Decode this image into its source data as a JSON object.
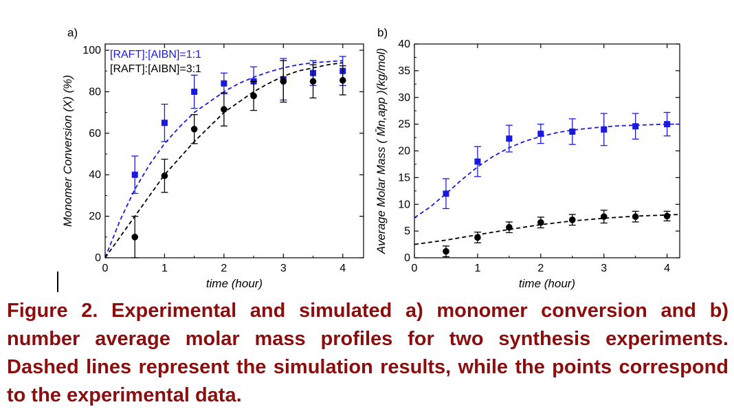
{
  "caption": "Figure 2. Experimental and simulated a) monomer conversion and b) number average molar mass profiles for two synthesis experiments. Dashed lines represent the simulation results, while the points correspond to the experimental data.",
  "colors": {
    "series_blue": "#1a1adf",
    "series_black": "#000000",
    "caption": "#8b0e0e"
  },
  "chart_data": [
    {
      "panel_label": "a)",
      "type": "scatter",
      "xlabel": "time (hour)",
      "ylabel": "Monomer Conversion (X) (%)",
      "xlim": [
        0,
        4.35
      ],
      "ylim": [
        0,
        103
      ],
      "xticks": [
        0,
        1,
        2,
        3,
        4
      ],
      "yticks": [
        0,
        20,
        40,
        60,
        80,
        100
      ],
      "legend": "top-left",
      "series": [
        {
          "name": "[RAFT]:[AIBN]=1:1",
          "color": "#1a1adf",
          "marker": "square",
          "x": [
            0.5,
            1.0,
            1.5,
            2.0,
            2.5,
            3.0,
            3.5,
            4.0
          ],
          "y": [
            40,
            65,
            80,
            84,
            85,
            86,
            89,
            90
          ],
          "err": [
            9,
            9,
            8,
            5,
            7,
            10,
            6,
            7
          ],
          "sim_x": [
            0,
            0.25,
            0.5,
            0.75,
            1.0,
            1.25,
            1.5,
            1.75,
            2.0,
            2.25,
            2.5,
            2.75,
            3.0,
            3.25,
            3.5,
            3.75,
            4.0
          ],
          "sim_y": [
            0,
            18,
            33,
            45,
            55,
            63,
            70,
            75,
            80,
            84,
            87,
            89.5,
            91.5,
            93,
            94,
            94.5,
            95
          ]
        },
        {
          "name": "[RAFT]:[AIBN]=3:1",
          "color": "#000000",
          "marker": "circle",
          "x": [
            0.5,
            1.0,
            1.5,
            2.0,
            2.5,
            3.0,
            3.5,
            4.0
          ],
          "y": [
            10,
            39.5,
            62,
            71.5,
            78,
            85,
            85,
            85.5
          ],
          "err": [
            10,
            8,
            7,
            8,
            7,
            10,
            8,
            7
          ],
          "sim_x": [
            0,
            0.25,
            0.5,
            0.75,
            1.0,
            1.25,
            1.5,
            1.75,
            2.0,
            2.25,
            2.5,
            2.75,
            3.0,
            3.25,
            3.5,
            3.75,
            4.0
          ],
          "sim_y": [
            0,
            10,
            20,
            30,
            40,
            48,
            56,
            63,
            70,
            75,
            80,
            84,
            87.5,
            90,
            91.5,
            93,
            94
          ]
        }
      ]
    },
    {
      "panel_label": "b)",
      "type": "scatter",
      "xlabel": "time (hour)",
      "ylabel": "Average Molar Mass ( M̄n,app )(kg/mol)",
      "xlim": [
        0,
        4.2
      ],
      "ylim": [
        0,
        40
      ],
      "xticks": [
        0,
        1,
        2,
        3,
        4
      ],
      "yticks": [
        0,
        5,
        10,
        15,
        20,
        25,
        30,
        35,
        40
      ],
      "series": [
        {
          "name": "",
          "color": "#1a1adf",
          "marker": "square",
          "x": [
            0.5,
            1.0,
            1.5,
            2.0,
            2.5,
            3.0,
            3.5,
            4.0
          ],
          "y": [
            12,
            18,
            22.3,
            23.2,
            23.6,
            24,
            24.6,
            25
          ],
          "err": [
            2.8,
            2.8,
            2.5,
            1.8,
            2.4,
            3.0,
            2.4,
            2.2
          ],
          "sim_x": [
            0,
            0.25,
            0.5,
            0.75,
            1.0,
            1.25,
            1.5,
            1.75,
            2.0,
            2.25,
            2.5,
            2.75,
            3.0,
            3.25,
            3.5,
            3.75,
            4.0,
            4.2
          ],
          "sim_y": [
            7.5,
            9.5,
            12,
            14.6,
            17,
            19,
            20.6,
            21.8,
            22.7,
            23.4,
            23.9,
            24.2,
            24.5,
            24.7,
            24.8,
            24.9,
            25.0,
            25.0
          ]
        },
        {
          "name": "",
          "color": "#000000",
          "marker": "circle",
          "x": [
            0.5,
            1.0,
            1.5,
            2.0,
            2.5,
            3.0,
            3.5,
            4.0
          ],
          "y": [
            1.2,
            3.8,
            5.7,
            6.6,
            7.1,
            7.7,
            7.7,
            7.8
          ],
          "err": [
            1.0,
            1.0,
            1.0,
            1.0,
            1.0,
            1.2,
            1.0,
            0.9
          ],
          "sim_x": [
            0,
            0.5,
            1.0,
            1.5,
            2.0,
            2.5,
            3.0,
            3.5,
            4.0,
            4.2
          ],
          "sim_y": [
            2.5,
            3.3,
            4.3,
            5.3,
            6.2,
            6.9,
            7.4,
            7.8,
            8.0,
            8.1
          ]
        }
      ]
    }
  ]
}
